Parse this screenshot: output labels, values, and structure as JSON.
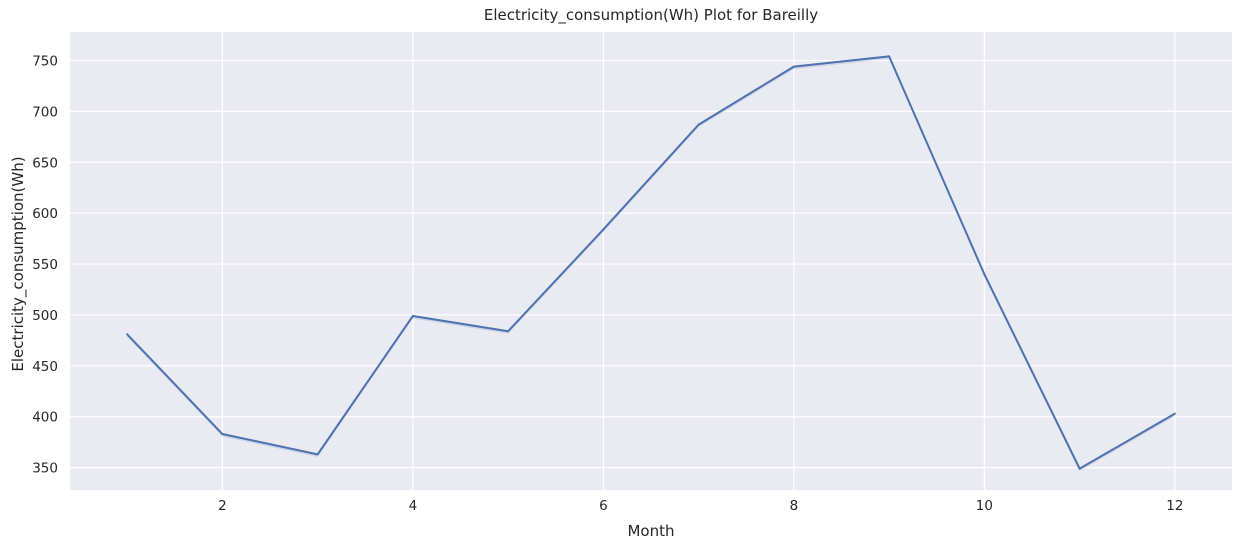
{
  "chart_data": {
    "type": "line",
    "title": "Electricity_consumption(Wh) Plot for Bareilly",
    "xlabel": "Month",
    "ylabel": "Electricity_consumption(Wh)",
    "xlim": [
      0.4,
      12.6
    ],
    "ylim": [
      328,
      778
    ],
    "grid": true,
    "x_ticks": [
      2,
      4,
      6,
      8,
      10,
      12
    ],
    "y_ticks": [
      350,
      400,
      450,
      500,
      550,
      600,
      650,
      700,
      750
    ],
    "series": [
      {
        "color": "#4c72b0",
        "x": [
          1,
          2,
          3,
          4,
          5,
          6,
          7,
          8,
          9,
          10,
          11,
          12
        ],
        "values": [
          481,
          383,
          363,
          499,
          484,
          584,
          687,
          744,
          754,
          540,
          349,
          403
        ]
      }
    ],
    "colors": {
      "background": "#eaeaf2",
      "grid": "#ffffff",
      "line": "#4c72b0",
      "band": "#a8b8d8"
    }
  }
}
